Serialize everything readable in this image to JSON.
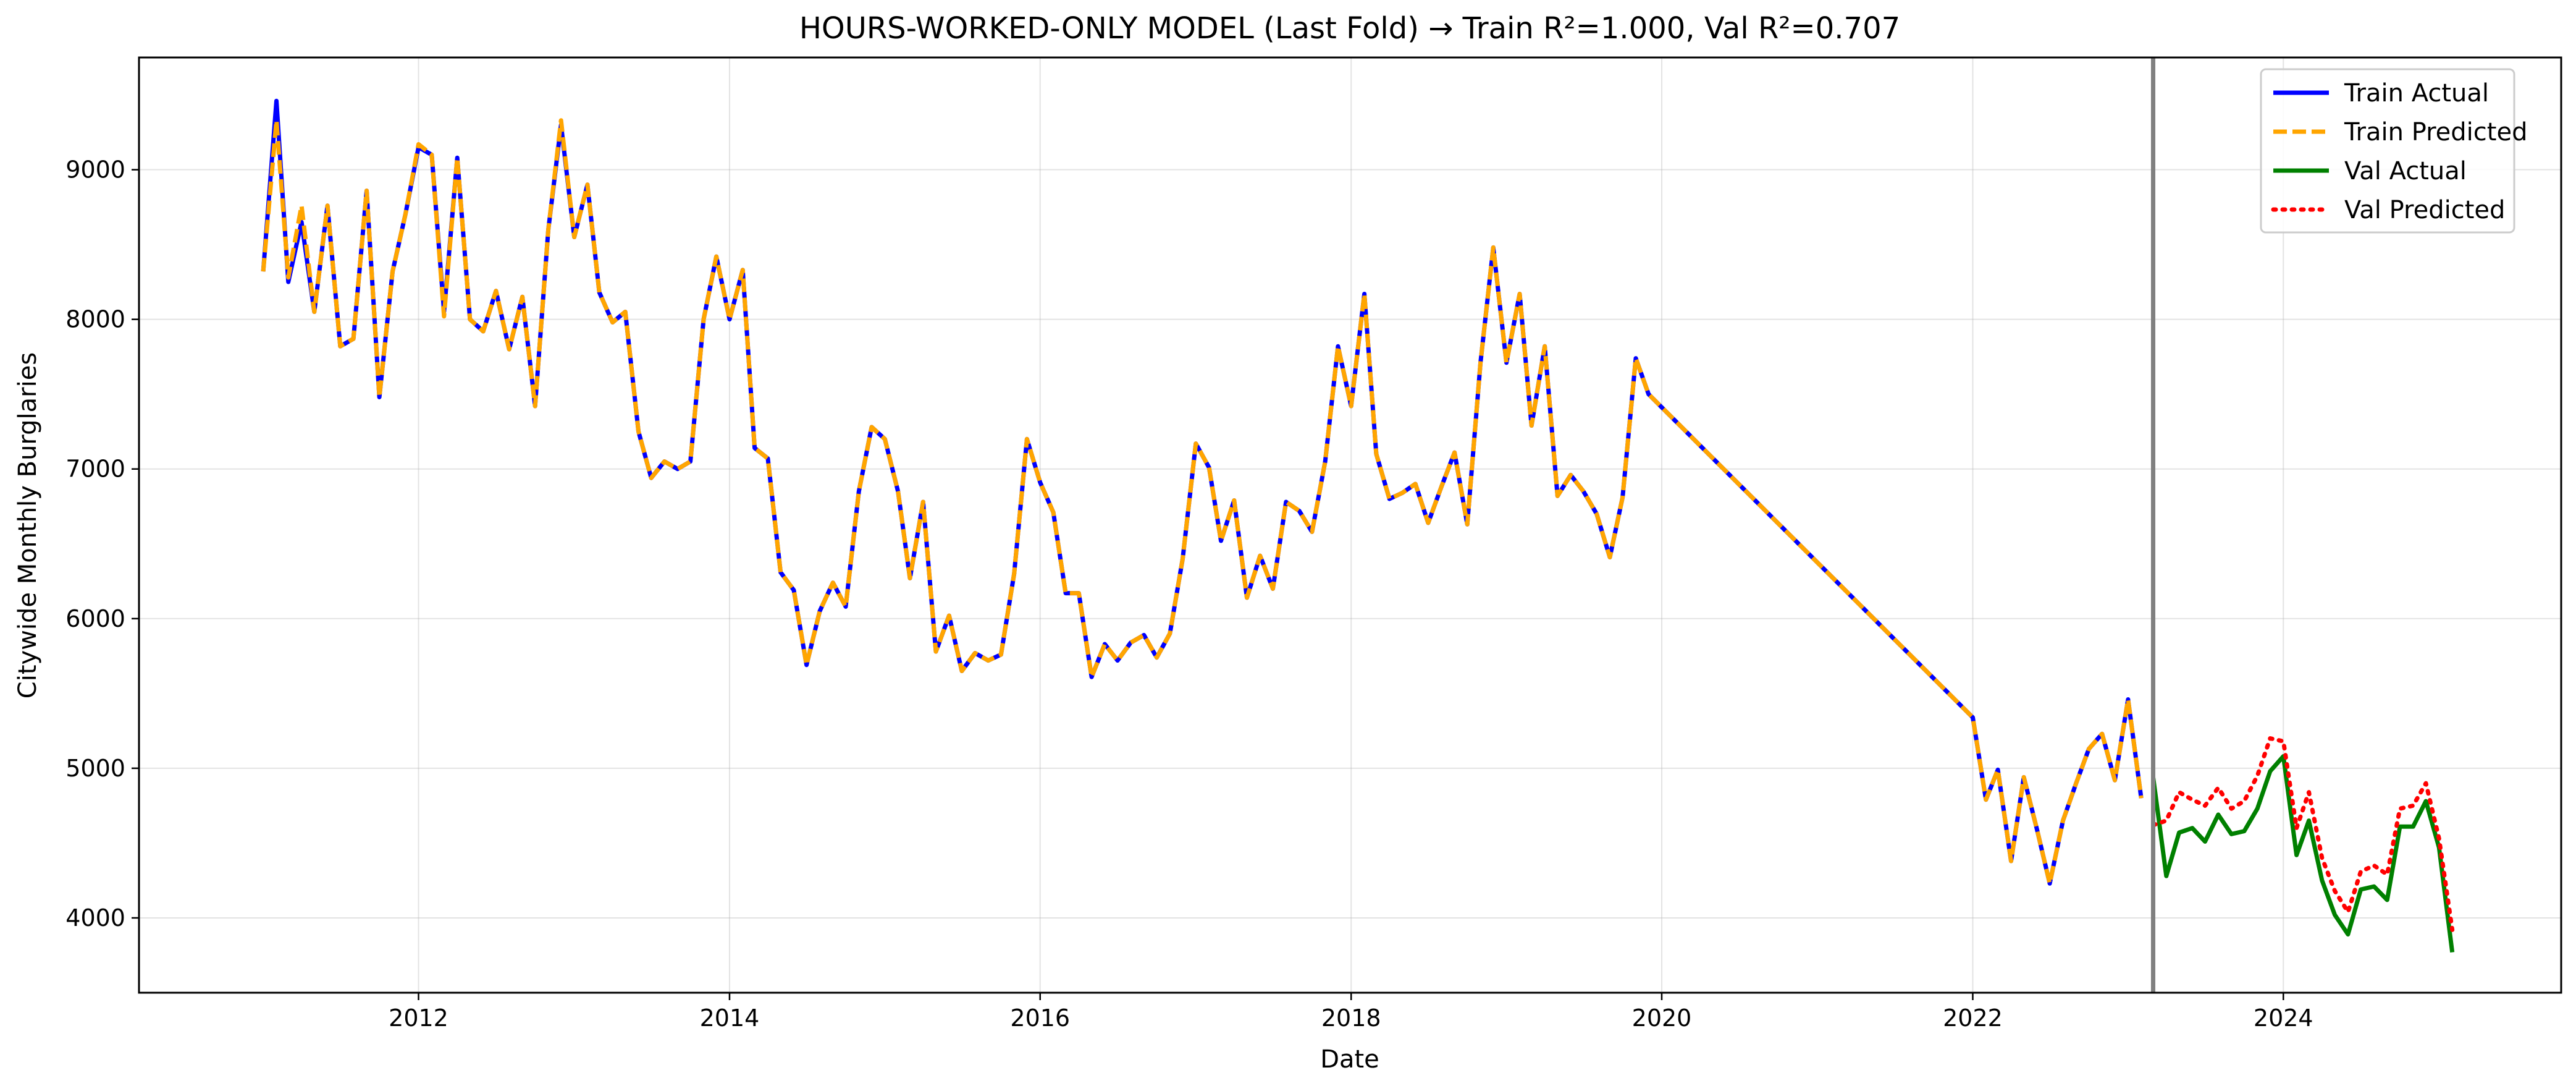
{
  "chart_data": {
    "type": "line",
    "title": "HOURS-WORKED-ONLY MODEL (Last Fold) → Train R²=1.000, Val R²=0.707",
    "xlabel": "Date",
    "ylabel": "Citywide Monthly Burglaries",
    "xlim": [
      "2010-03-15",
      "2025-10-15"
    ],
    "ylim": [
      3500,
      9750
    ],
    "x_ticks": [
      "2012",
      "2014",
      "2016",
      "2018",
      "2020",
      "2022",
      "2024"
    ],
    "y_ticks": [
      "4000",
      "5000",
      "6000",
      "7000",
      "8000",
      "9000"
    ],
    "grid": true,
    "legend_position": "top-right",
    "split_date": "2023-03-01",
    "series": [
      {
        "name": "Train Actual",
        "color": "#0000ff",
        "style": "solid",
        "x": [
          "2011-01",
          "2011-02",
          "2011-03",
          "2011-04",
          "2011-05",
          "2011-06",
          "2011-07",
          "2011-08",
          "2011-09",
          "2011-10",
          "2011-11",
          "2011-12",
          "2012-01",
          "2012-02",
          "2012-03",
          "2012-04",
          "2012-05",
          "2012-06",
          "2012-07",
          "2012-08",
          "2012-09",
          "2012-10",
          "2012-11",
          "2012-12",
          "2013-01",
          "2013-02",
          "2013-03",
          "2013-04",
          "2013-05",
          "2013-06",
          "2013-07",
          "2013-08",
          "2013-09",
          "2013-10",
          "2013-11",
          "2013-12",
          "2014-01",
          "2014-02",
          "2014-03",
          "2014-04",
          "2014-05",
          "2014-06",
          "2014-07",
          "2014-08",
          "2014-09",
          "2014-10",
          "2014-11",
          "2014-12",
          "2015-01",
          "2015-02",
          "2015-03",
          "2015-04",
          "2015-05",
          "2015-06",
          "2015-07",
          "2015-08",
          "2015-09",
          "2015-10",
          "2015-11",
          "2015-12",
          "2016-01",
          "2016-02",
          "2016-03",
          "2016-04",
          "2016-05",
          "2016-06",
          "2016-07",
          "2016-08",
          "2016-09",
          "2016-10",
          "2016-11",
          "2016-12",
          "2017-01",
          "2017-02",
          "2017-03",
          "2017-04",
          "2017-05",
          "2017-06",
          "2017-07",
          "2017-08",
          "2017-09",
          "2017-10",
          "2017-11",
          "2017-12",
          "2018-01",
          "2018-02",
          "2018-03",
          "2018-04",
          "2018-05",
          "2018-06",
          "2018-07",
          "2018-08",
          "2018-09",
          "2018-10",
          "2018-11",
          "2018-12",
          "2019-01",
          "2019-02",
          "2019-03",
          "2019-04",
          "2019-05",
          "2019-06",
          "2019-07",
          "2019-08",
          "2019-09",
          "2019-10",
          "2019-11",
          "2019-12",
          "2022-01",
          "2022-02",
          "2022-03",
          "2022-04",
          "2022-05",
          "2022-06",
          "2022-07",
          "2022-08",
          "2022-09",
          "2022-10",
          "2022-11",
          "2022-12",
          "2023-01",
          "2023-02"
        ],
        "y": [
          8320,
          9460,
          8250,
          8650,
          8050,
          8760,
          7820,
          7870,
          8860,
          7480,
          8320,
          8700,
          9150,
          9100,
          8050,
          9080,
          8000,
          7920,
          8190,
          7800,
          8150,
          7420,
          8600,
          9300,
          8550,
          8900,
          8180,
          7980,
          8050,
          7250,
          6940,
          7050,
          7000,
          7050,
          8000,
          8420,
          8000,
          8330,
          7140,
          7070,
          6310,
          6190,
          5690,
          6050,
          6240,
          6080,
          6850,
          7280,
          7200,
          6850,
          6270,
          6780,
          5780,
          6020,
          5650,
          5770,
          5720,
          5760,
          6300,
          7200,
          6910,
          6710,
          6170,
          6170,
          5610,
          5830,
          5720,
          5840,
          5890,
          5740,
          5900,
          6400,
          7170,
          7010,
          6520,
          6790,
          6140,
          6420,
          6200,
          6780,
          6720,
          6580,
          7050,
          7820,
          7420,
          8170,
          7100,
          6800,
          6840,
          6900,
          6640,
          6880,
          7110,
          6630,
          7710,
          8480,
          7710,
          8170,
          7290,
          7820,
          6820,
          6960,
          6850,
          6700,
          6410,
          6810,
          7740,
          7500,
          5340,
          4790,
          4990,
          4380,
          4940,
          4590,
          4230,
          4650,
          4900,
          5130,
          5230,
          4920,
          5460,
          4800
        ]
      },
      {
        "name": "Train Predicted",
        "color": "#ffa500",
        "style": "dashed",
        "x": [
          "2011-01",
          "2011-02",
          "2011-03",
          "2011-04",
          "2011-05",
          "2011-06",
          "2011-07",
          "2011-08",
          "2011-09",
          "2011-10",
          "2011-11",
          "2011-12",
          "2012-01",
          "2012-02",
          "2012-03",
          "2012-04",
          "2012-05",
          "2012-06",
          "2012-07",
          "2012-08",
          "2012-09",
          "2012-10",
          "2012-11",
          "2012-12",
          "2013-01",
          "2013-02",
          "2013-03",
          "2013-04",
          "2013-05",
          "2013-06",
          "2013-07",
          "2013-08",
          "2013-09",
          "2013-10",
          "2013-11",
          "2013-12",
          "2014-01",
          "2014-02",
          "2014-03",
          "2014-04",
          "2014-05",
          "2014-06",
          "2014-07",
          "2014-08",
          "2014-09",
          "2014-10",
          "2014-11",
          "2014-12",
          "2015-01",
          "2015-02",
          "2015-03",
          "2015-04",
          "2015-05",
          "2015-06",
          "2015-07",
          "2015-08",
          "2015-09",
          "2015-10",
          "2015-11",
          "2015-12",
          "2016-01",
          "2016-02",
          "2016-03",
          "2016-04",
          "2016-05",
          "2016-06",
          "2016-07",
          "2016-08",
          "2016-09",
          "2016-10",
          "2016-11",
          "2016-12",
          "2017-01",
          "2017-02",
          "2017-03",
          "2017-04",
          "2017-05",
          "2017-06",
          "2017-07",
          "2017-08",
          "2017-09",
          "2017-10",
          "2017-11",
          "2017-12",
          "2018-01",
          "2018-02",
          "2018-03",
          "2018-04",
          "2018-05",
          "2018-06",
          "2018-07",
          "2018-08",
          "2018-09",
          "2018-10",
          "2018-11",
          "2018-12",
          "2019-01",
          "2019-02",
          "2019-03",
          "2019-04",
          "2019-05",
          "2019-06",
          "2019-07",
          "2019-08",
          "2019-09",
          "2019-10",
          "2019-11",
          "2019-12",
          "2022-01",
          "2022-02",
          "2022-03",
          "2022-04",
          "2022-05",
          "2022-06",
          "2022-07",
          "2022-08",
          "2022-09",
          "2022-10",
          "2022-11",
          "2022-12",
          "2023-01",
          "2023-02"
        ],
        "y": [
          8320,
          9330,
          8280,
          8760,
          8050,
          8760,
          7820,
          7870,
          8860,
          7480,
          8320,
          8700,
          9170,
          9100,
          8020,
          9080,
          8000,
          7920,
          8190,
          7800,
          8150,
          7420,
          8600,
          9330,
          8550,
          8900,
          8180,
          7980,
          8050,
          7250,
          6940,
          7050,
          7000,
          7050,
          8000,
          8420,
          8000,
          8330,
          7140,
          7070,
          6310,
          6190,
          5690,
          6050,
          6240,
          6080,
          6850,
          7280,
          7200,
          6850,
          6270,
          6780,
          5780,
          6020,
          5650,
          5770,
          5720,
          5760,
          6300,
          7200,
          6910,
          6710,
          6170,
          6170,
          5610,
          5830,
          5720,
          5840,
          5890,
          5740,
          5900,
          6400,
          7170,
          7010,
          6520,
          6790,
          6140,
          6420,
          6200,
          6780,
          6720,
          6580,
          7050,
          7820,
          7420,
          8170,
          7100,
          6800,
          6840,
          6900,
          6640,
          6880,
          7110,
          6630,
          7710,
          8480,
          7710,
          8170,
          7290,
          7820,
          6820,
          6960,
          6850,
          6700,
          6410,
          6810,
          7740,
          7500,
          5340,
          4790,
          4990,
          4380,
          4940,
          4590,
          4230,
          4650,
          4900,
          5130,
          5230,
          4920,
          5460,
          4800
        ]
      },
      {
        "name": "Val Actual",
        "color": "#008000",
        "style": "solid",
        "x": [
          "2023-03",
          "2023-04",
          "2023-05",
          "2023-06",
          "2023-07",
          "2023-08",
          "2023-09",
          "2023-10",
          "2023-11",
          "2023-12",
          "2024-01",
          "2024-02",
          "2024-03",
          "2024-04",
          "2024-05",
          "2024-06",
          "2024-07",
          "2024-08",
          "2024-09",
          "2024-10",
          "2024-11",
          "2024-12",
          "2025-01",
          "2025-02"
        ],
        "y": [
          4940,
          4280,
          4570,
          4600,
          4510,
          4690,
          4560,
          4580,
          4730,
          4980,
          5080,
          4420,
          4650,
          4250,
          4020,
          3890,
          4190,
          4210,
          4120,
          4610,
          4610,
          4780,
          4470,
          3770
        ]
      },
      {
        "name": "Val Predicted",
        "color": "#ff0000",
        "style": "dotted",
        "x": [
          "2023-03",
          "2023-04",
          "2023-05",
          "2023-06",
          "2023-07",
          "2023-08",
          "2023-09",
          "2023-10",
          "2023-11",
          "2023-12",
          "2024-01",
          "2024-02",
          "2024-03",
          "2024-04",
          "2024-05",
          "2024-06",
          "2024-07",
          "2024-08",
          "2024-09",
          "2024-10",
          "2024-11",
          "2024-12",
          "2025-01",
          "2025-02"
        ],
        "y": [
          4620,
          4650,
          4840,
          4790,
          4750,
          4870,
          4730,
          4780,
          4950,
          5200,
          5180,
          4600,
          4840,
          4400,
          4180,
          4040,
          4310,
          4350,
          4290,
          4730,
          4750,
          4900,
          4530,
          3920
        ]
      }
    ]
  }
}
